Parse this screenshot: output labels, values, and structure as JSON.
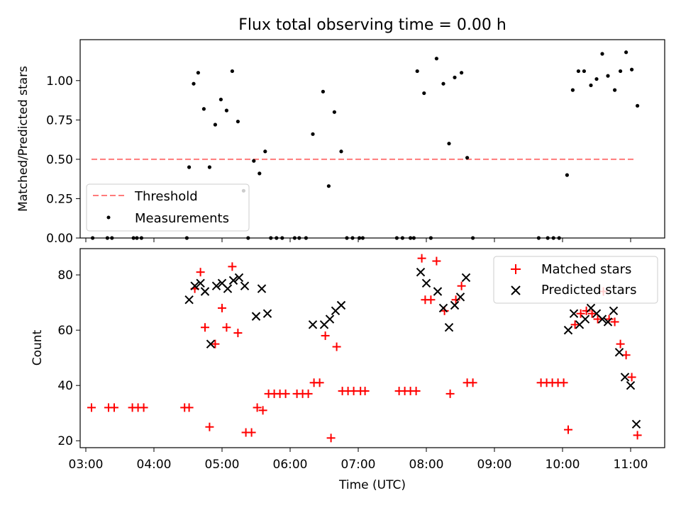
{
  "chart_data": [
    {
      "type": "scatter",
      "title": "Flux total observing time = 0.00 h",
      "ylabel": "Matched/Predicted stars",
      "xlabel": "",
      "ylim": [
        0,
        1.26
      ],
      "yticks": [
        "0.00",
        "0.25",
        "0.50",
        "0.75",
        "1.00"
      ],
      "yticks_values": [
        0,
        0.25,
        0.5,
        0.75,
        1.0
      ],
      "legend_position": "lower-left",
      "threshold": {
        "name": "Threshold",
        "y": 0.5,
        "x_start": "03:05",
        "x_end": "11:05",
        "color": "#ff7b7b"
      },
      "series": [
        {
          "name": "Measurements",
          "color": "#000000",
          "points": [
            [
              "03:06",
              0
            ],
            [
              "03:19",
              0
            ],
            [
              "03:23",
              0
            ],
            [
              "03:42",
              0
            ],
            [
              "03:45",
              0
            ],
            [
              "03:49",
              0
            ],
            [
              "04:29",
              0
            ],
            [
              "04:31",
              0.45
            ],
            [
              "04:35",
              0.98
            ],
            [
              "04:39",
              1.05
            ],
            [
              "04:44",
              0.82
            ],
            [
              "04:49",
              0.45
            ],
            [
              "04:54",
              0.72
            ],
            [
              "04:59",
              0.88
            ],
            [
              "05:04",
              0.81
            ],
            [
              "05:09",
              1.06
            ],
            [
              "05:14",
              0.74
            ],
            [
              "05:19",
              0.3
            ],
            [
              "05:23",
              0
            ],
            [
              "05:28",
              0.49
            ],
            [
              "05:33",
              0.41
            ],
            [
              "05:38",
              0.55
            ],
            [
              "05:43",
              0
            ],
            [
              "05:48",
              0
            ],
            [
              "05:53",
              0
            ],
            [
              "06:04",
              0
            ],
            [
              "06:08",
              0
            ],
            [
              "06:14",
              0
            ],
            [
              "06:20",
              0.66
            ],
            [
              "06:29",
              0.93
            ],
            [
              "06:34",
              0.33
            ],
            [
              "06:39",
              0.8
            ],
            [
              "06:45",
              0.55
            ],
            [
              "06:50",
              0
            ],
            [
              "06:55",
              0
            ],
            [
              "07:01",
              0
            ],
            [
              "07:04",
              0
            ],
            [
              "07:34",
              0
            ],
            [
              "07:39",
              0
            ],
            [
              "07:46",
              0
            ],
            [
              "07:49",
              0
            ],
            [
              "07:52",
              1.06
            ],
            [
              "07:58",
              0.92
            ],
            [
              "08:04",
              0
            ],
            [
              "08:09",
              1.14
            ],
            [
              "08:15",
              0.98
            ],
            [
              "08:20",
              0.6
            ],
            [
              "08:25",
              1.02
            ],
            [
              "08:31",
              1.05
            ],
            [
              "08:36",
              0.51
            ],
            [
              "08:41",
              0
            ],
            [
              "09:39",
              0
            ],
            [
              "09:47",
              0
            ],
            [
              "09:52",
              0
            ],
            [
              "09:57",
              0
            ],
            [
              "10:04",
              0.4
            ],
            [
              "10:09",
              0.94
            ],
            [
              "10:14",
              1.06
            ],
            [
              "10:19",
              1.06
            ],
            [
              "10:25",
              0.97
            ],
            [
              "10:30",
              1.01
            ],
            [
              "10:35",
              1.17
            ],
            [
              "10:40",
              1.03
            ],
            [
              "10:46",
              0.94
            ],
            [
              "10:51",
              1.06
            ],
            [
              "10:56",
              1.18
            ],
            [
              "11:01",
              1.07
            ],
            [
              "11:06",
              0.84
            ]
          ]
        }
      ]
    },
    {
      "type": "scatter",
      "title": "",
      "xlabel": "Time (UTC)",
      "ylabel": "Count",
      "ylim": [
        17.5,
        89.5
      ],
      "yticks": [
        "20",
        "40",
        "60",
        "80"
      ],
      "yticks_values": [
        20,
        40,
        60,
        80
      ],
      "xticks": [
        "03:00",
        "04:00",
        "05:00",
        "06:00",
        "07:00",
        "08:00",
        "09:00",
        "10:00",
        "11:00"
      ],
      "xlim": [
        "02:55",
        "11:30"
      ],
      "legend_position": "upper-right",
      "series": [
        {
          "name": "Matched stars",
          "color": "#ff0000",
          "marker": "+",
          "points": [
            [
              "03:05",
              32
            ],
            [
              "03:20",
              32
            ],
            [
              "03:25",
              32
            ],
            [
              "03:41",
              32
            ],
            [
              "03:46",
              32
            ],
            [
              "03:51",
              32
            ],
            [
              "04:27",
              32
            ],
            [
              "04:31",
              32
            ],
            [
              "04:36",
              75
            ],
            [
              "04:41",
              81
            ],
            [
              "04:45",
              61
            ],
            [
              "04:49",
              25
            ],
            [
              "04:54",
              55
            ],
            [
              "05:00",
              68
            ],
            [
              "05:04",
              61
            ],
            [
              "05:09",
              83
            ],
            [
              "05:14",
              59
            ],
            [
              "05:21",
              23
            ],
            [
              "05:26",
              23
            ],
            [
              "05:31",
              32
            ],
            [
              "05:36",
              31
            ],
            [
              "05:41",
              37
            ],
            [
              "05:46",
              37
            ],
            [
              "05:51",
              37
            ],
            [
              "05:56",
              37
            ],
            [
              "06:06",
              37
            ],
            [
              "06:11",
              37
            ],
            [
              "06:16",
              37
            ],
            [
              "06:21",
              41
            ],
            [
              "06:26",
              41
            ],
            [
              "06:31",
              58
            ],
            [
              "06:36",
              21
            ],
            [
              "06:41",
              54
            ],
            [
              "06:46",
              38
            ],
            [
              "06:51",
              38
            ],
            [
              "06:56",
              38
            ],
            [
              "07:02",
              38
            ],
            [
              "07:06",
              38
            ],
            [
              "07:36",
              38
            ],
            [
              "07:41",
              38
            ],
            [
              "07:46",
              38
            ],
            [
              "07:51",
              38
            ],
            [
              "07:56",
              86
            ],
            [
              "07:59",
              71
            ],
            [
              "08:04",
              71
            ],
            [
              "08:09",
              85
            ],
            [
              "08:16",
              67
            ],
            [
              "08:21",
              37
            ],
            [
              "08:26",
              71
            ],
            [
              "08:31",
              76
            ],
            [
              "08:36",
              41
            ],
            [
              "08:41",
              41
            ],
            [
              "09:41",
              41
            ],
            [
              "09:46",
              41
            ],
            [
              "09:51",
              41
            ],
            [
              "09:56",
              41
            ],
            [
              "10:01",
              41
            ],
            [
              "10:05",
              24
            ],
            [
              "10:11",
              62
            ],
            [
              "10:16",
              66
            ],
            [
              "10:21",
              67
            ],
            [
              "10:26",
              66
            ],
            [
              "10:31",
              64
            ],
            [
              "10:36",
              74
            ],
            [
              "10:41",
              64
            ],
            [
              "10:46",
              63
            ],
            [
              "10:51",
              55
            ],
            [
              "10:56",
              51
            ],
            [
              "11:01",
              43
            ],
            [
              "11:06",
              22
            ]
          ]
        },
        {
          "name": "Predicted stars",
          "color": "#000000",
          "marker": "x",
          "points": [
            [
              "04:31",
              71
            ],
            [
              "04:36",
              76
            ],
            [
              "04:41",
              77
            ],
            [
              "04:45",
              74
            ],
            [
              "04:50",
              55
            ],
            [
              "04:55",
              76
            ],
            [
              "05:00",
              77
            ],
            [
              "05:05",
              75
            ],
            [
              "05:10",
              78
            ],
            [
              "05:15",
              79
            ],
            [
              "05:20",
              76
            ],
            [
              "05:30",
              65
            ],
            [
              "05:35",
              75
            ],
            [
              "05:40",
              66
            ],
            [
              "06:20",
              62
            ],
            [
              "06:30",
              62
            ],
            [
              "06:35",
              64
            ],
            [
              "06:40",
              67
            ],
            [
              "06:45",
              69
            ],
            [
              "07:55",
              81
            ],
            [
              "08:00",
              77
            ],
            [
              "08:10",
              74
            ],
            [
              "08:15",
              68
            ],
            [
              "08:20",
              61
            ],
            [
              "08:25",
              69
            ],
            [
              "08:30",
              72
            ],
            [
              "08:35",
              79
            ],
            [
              "10:05",
              60
            ],
            [
              "10:10",
              66
            ],
            [
              "10:15",
              62
            ],
            [
              "10:20",
              64
            ],
            [
              "10:25",
              68
            ],
            [
              "10:30",
              66
            ],
            [
              "10:35",
              64
            ],
            [
              "10:40",
              63
            ],
            [
              "10:45",
              67
            ],
            [
              "10:50",
              52
            ],
            [
              "10:55",
              43
            ],
            [
              "11:00",
              40
            ],
            [
              "11:05",
              26
            ]
          ]
        }
      ]
    }
  ]
}
